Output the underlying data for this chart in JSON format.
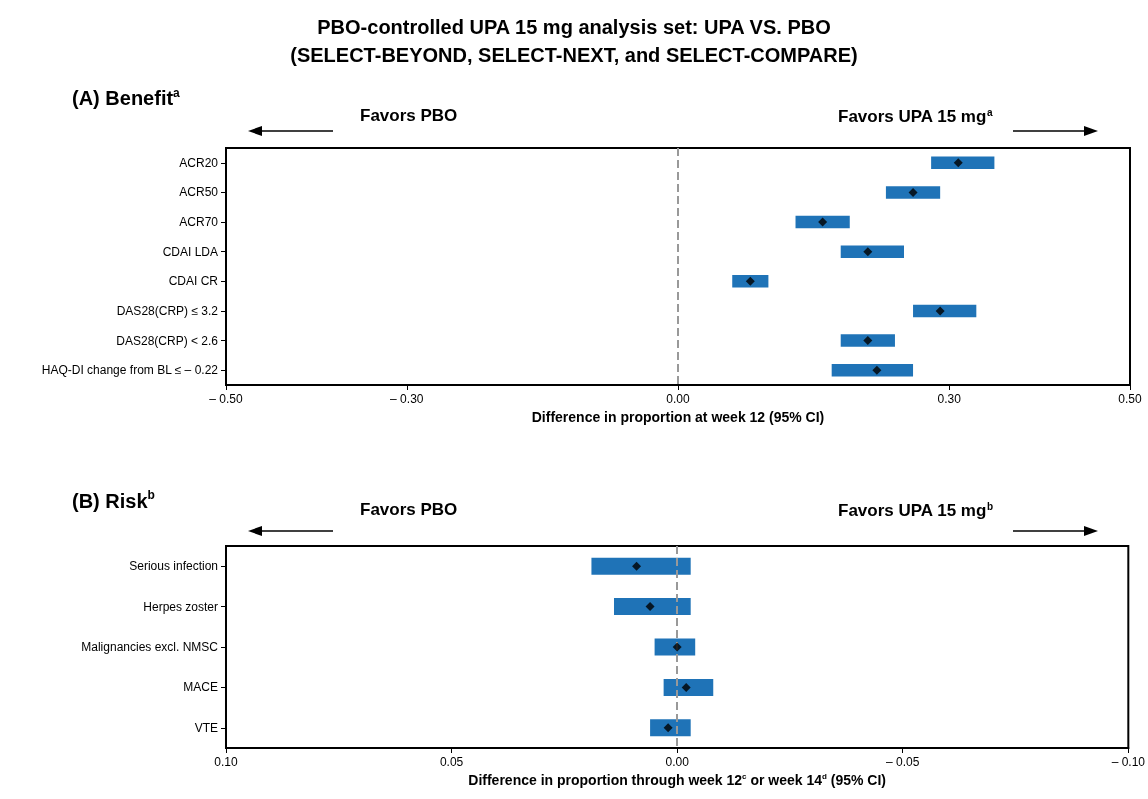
{
  "chart_data": [
    {
      "type": "bar",
      "orientation": "horizontal",
      "title": "PBO-controlled UPA 15 mg analysis set: UPA VS. PBO\n(SELECT-BEYOND, SELECT-NEXT, and SELECT-COMPARE)",
      "subtitle": "(A) Benefit$^{a}$",
      "xlabel": "Difference in proportion at week 12 (95% CI)",
      "annotations": [
        "Favors PBO",
        "Favors UPA 15 mg$^{a}$"
      ],
      "categories": [
        "ACR20",
        "ACR50",
        "ACR70",
        "CDAI LDA",
        "CDAI CR",
        "DAS28(CRP) ≤ 3.2",
        "DAS28(CRP) < 2.6",
        "HAQ-DI change from BL ≤ – 0.22"
      ],
      "series": [
        {
          "color": "#1f73b7",
          "base": [
            0.28,
            0.23,
            0.13,
            0.18,
            0.06,
            0.26,
            0.18,
            0.17
          ],
          "values": [
            0.07,
            0.06,
            0.06,
            0.07,
            0.04,
            0.07,
            0.06,
            0.09
          ]
        },
        {
          "type": "scatter",
          "color": "#000000",
          "marker": "diamond",
          "values": [
            0.31,
            0.26,
            0.16,
            0.21,
            0.08,
            0.29,
            0.21,
            0.22
          ]
        }
      ],
      "xlim": [
        -0.5,
        0.5
      ],
      "xticks": [
        {
          "value": -0.5,
          "label": "– 0.50"
        },
        {
          "value": -0.3,
          "label": "– 0.30"
        },
        {
          "value": 0,
          "label": "0.00"
        },
        {
          "value": 0.3,
          "label": "0.30"
        },
        {
          "value": 0.5,
          "label": "0.50"
        }
      ],
      "ref_lines": [
        {
          "axis": "x",
          "value": 0,
          "color": "#999999",
          "line_style": "dashed"
        }
      ],
      "grid": false
    },
    {
      "type": "bar",
      "orientation": "horizontal",
      "title": "(B) Risk$^{b}$",
      "xlabel": "Difference in proportion through week 12$^{c}$ or week 14$^{d}$ (95% CI)",
      "annotations": [
        "Favors PBO",
        "Favors UPA 15 mg$^{b}$"
      ],
      "categories": [
        "Serious infection",
        "Herpes zoster",
        "Malignancies excl. NMSC",
        "MACE",
        "VTE"
      ],
      "series": [
        {
          "color": "#1f73b7",
          "base": [
            -0.003,
            -0.003,
            -0.004,
            -0.008,
            -0.003
          ],
          "values": [
            0.022,
            0.017,
            0.009,
            0.011,
            0.009
          ]
        },
        {
          "type": "scatter",
          "color": "#000000",
          "marker": "diamond",
          "values": [
            0.009,
            0.006,
            0.0,
            -0.002,
            0.002
          ]
        }
      ],
      "xlim": [
        0.1,
        -0.1
      ],
      "xticks": [
        {
          "value": 0.1,
          "label": "0.10"
        },
        {
          "value": 0.05,
          "label": "0.05"
        },
        {
          "value": 0,
          "label": "0.00"
        },
        {
          "value": -0.05,
          "label": "– 0.05"
        },
        {
          "value": -0.1,
          "label": "– 0.10"
        }
      ],
      "ref_lines": [
        {
          "axis": "x",
          "value": 0,
          "color": "#999999",
          "line_style": "dashed"
        }
      ],
      "grid": false
    }
  ]
}
